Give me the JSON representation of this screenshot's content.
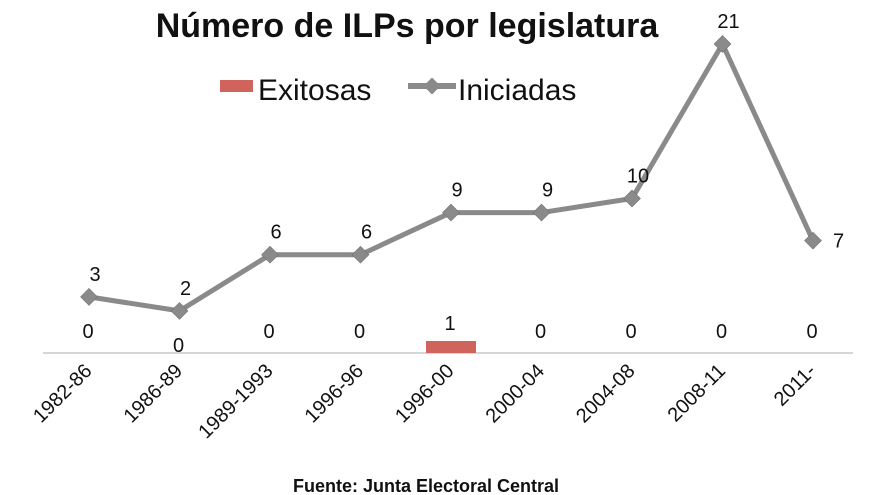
{
  "chart_data": {
    "type": "line",
    "title": "Número de ILPs por legislatura",
    "categories": [
      "1982-86",
      "1986-89",
      "1989-1993",
      "1996-96",
      "1996-00",
      "2000-04",
      "2004-08",
      "2008-11",
      "2011-"
    ],
    "series": [
      {
        "name": "Exitosas",
        "kind": "bar",
        "color": "#d0645c",
        "values": [
          0,
          0,
          0,
          0,
          1,
          0,
          0,
          0,
          0
        ]
      },
      {
        "name": "Iniciadas",
        "kind": "line",
        "color": "#8a8a8a",
        "values": [
          3,
          2,
          6,
          6,
          9,
          9,
          10,
          21,
          7
        ]
      }
    ],
    "ylim": [
      0,
      21
    ],
    "legend": [
      "Exitosas",
      "Iniciadas"
    ],
    "source": "Fuente: Junta Electoral Central"
  }
}
